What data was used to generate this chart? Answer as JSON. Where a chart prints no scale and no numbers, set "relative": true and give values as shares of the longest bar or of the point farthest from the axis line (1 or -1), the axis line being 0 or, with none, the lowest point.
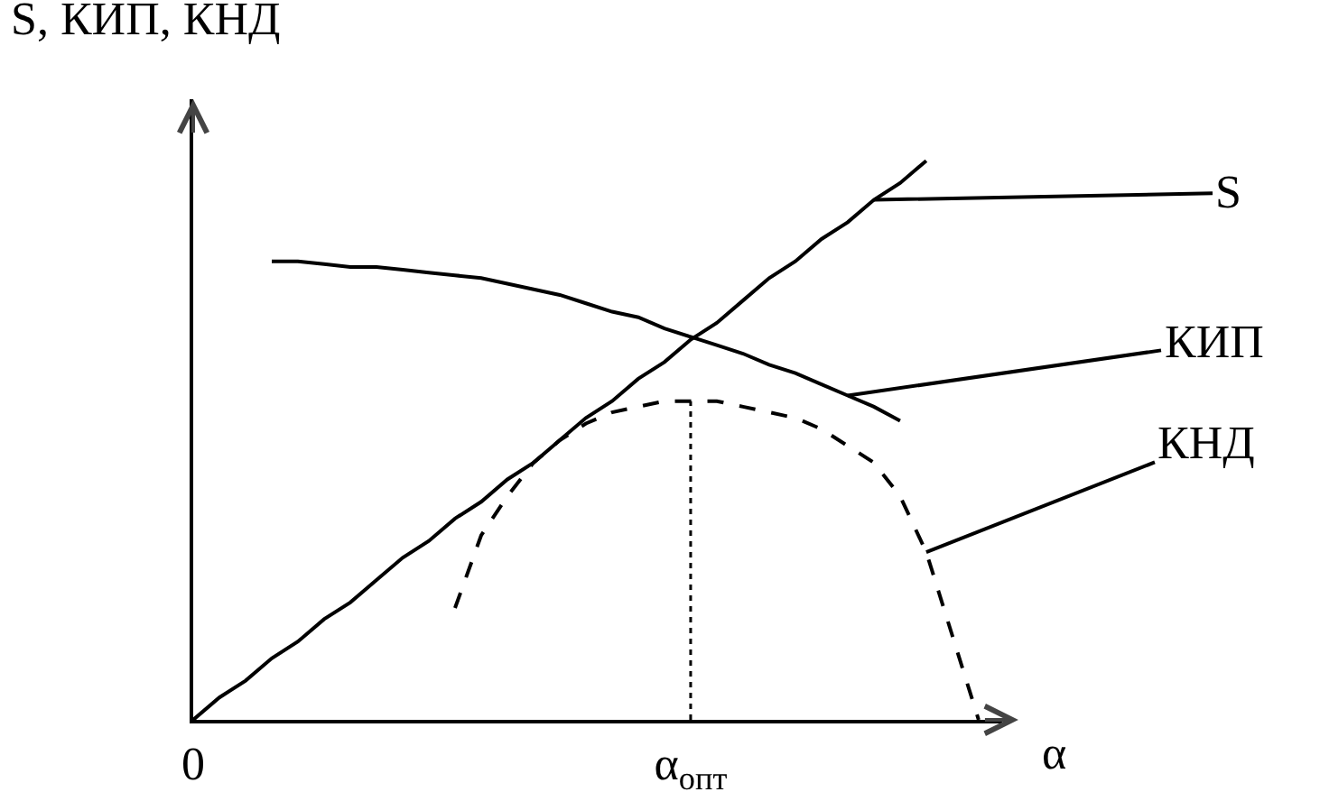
{
  "chart_data": {
    "type": "line",
    "relative": true,
    "ylabel": "S, КИП, КНД",
    "xlabel": "α",
    "legend": false,
    "marker": "none",
    "categories": [
      "0",
      null,
      null,
      null,
      null,
      null,
      null,
      null,
      null,
      null,
      null,
      null,
      null,
      null,
      null,
      null,
      null,
      null,
      null,
      "α$_{опт}$",
      null,
      null,
      null,
      null,
      null,
      null,
      null,
      null,
      null,
      null,
      null
    ],
    "ref_lines": [
      {
        "axis": "x",
        "value": "α$_{опт}$",
        "color": "#000000",
        "line_style": "dotted"
      }
    ],
    "series": [
      {
        "name": "S",
        "color": "#000000",
        "line_style": "solid",
        "values": [
          0,
          0.04,
          0.07,
          0.11,
          0.14,
          0.18,
          0.21,
          0.25,
          0.29,
          0.32,
          0.36,
          0.39,
          0.43,
          0.46,
          0.5,
          0.54,
          0.57,
          0.61,
          0.64,
          0.68,
          0.71,
          0.75,
          0.79,
          0.82,
          0.86,
          0.89,
          0.93,
          0.96,
          1,
          null,
          null
        ]
      },
      {
        "name": "КИП",
        "color": "#000000",
        "line_style": "solid",
        "values": [
          null,
          null,
          null,
          0.82,
          0.82,
          0.815,
          0.81,
          0.81,
          0.805,
          0.8,
          0.795,
          0.79,
          0.78,
          0.77,
          0.76,
          0.745,
          0.73,
          0.72,
          0.7,
          0.685,
          0.67,
          0.655,
          0.635,
          0.62,
          0.6,
          0.58,
          0.56,
          0.535,
          null,
          null,
          null
        ]
      },
      {
        "name": "КНД",
        "color": "#000000",
        "line_style": "dashed",
        "values": [
          null,
          null,
          null,
          null,
          null,
          null,
          null,
          null,
          null,
          null,
          0.2,
          0.33,
          0.4,
          0.46,
          0.5,
          0.53,
          0.55,
          0.56,
          0.57,
          0.57,
          0.57,
          0.56,
          0.55,
          0.54,
          0.52,
          0.49,
          0.46,
          0.4,
          0.3,
          0.15,
          0
        ]
      }
    ]
  }
}
